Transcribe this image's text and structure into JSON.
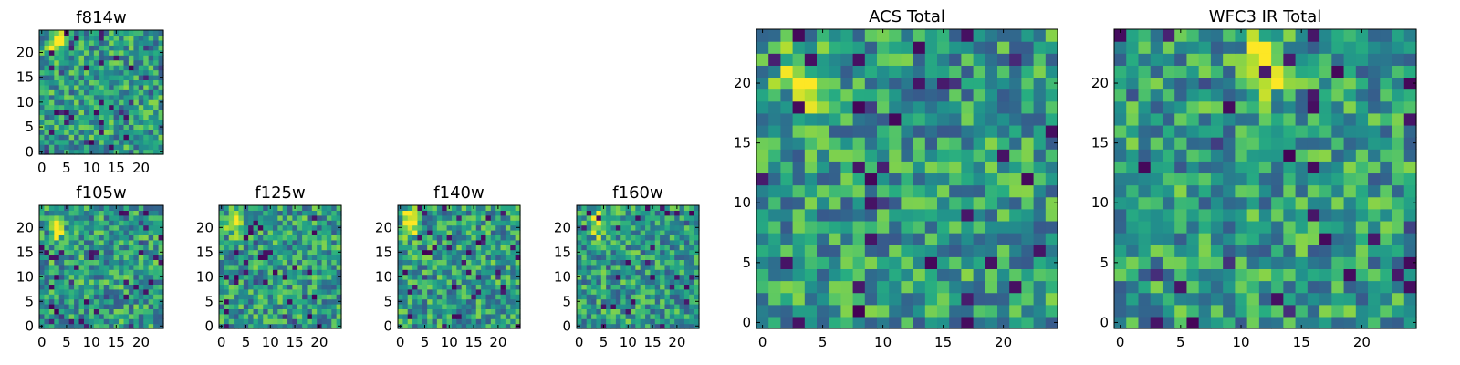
{
  "figure": {
    "colormap": "viridis",
    "background": "#ffffff"
  },
  "chart_data": [
    {
      "type": "heatmap",
      "title": "f814w",
      "xticks": [
        "0",
        "5",
        "10",
        "15",
        "20"
      ],
      "yticks": [
        "0",
        "5",
        "10",
        "15",
        "20"
      ],
      "grid_size": 25,
      "hotspot": {
        "x": 3,
        "y": 22
      },
      "noise_seed": 11
    },
    {
      "type": "heatmap",
      "title": "f105w",
      "xticks": [
        "0",
        "5",
        "10",
        "15",
        "20"
      ],
      "yticks": [
        "0",
        "5",
        "10",
        "15",
        "20"
      ],
      "grid_size": 25,
      "hotspot": {
        "x": 3,
        "y": 20
      },
      "noise_seed": 23
    },
    {
      "type": "heatmap",
      "title": "f125w",
      "xticks": [
        "0",
        "5",
        "10",
        "15",
        "20"
      ],
      "yticks": [
        "0",
        "5",
        "10",
        "15",
        "20"
      ],
      "grid_size": 25,
      "hotspot": {
        "x": 3,
        "y": 21
      },
      "noise_seed": 37
    },
    {
      "type": "heatmap",
      "title": "f140w",
      "xticks": [
        "0",
        "5",
        "10",
        "15",
        "20"
      ],
      "yticks": [
        "0",
        "5",
        "10",
        "15",
        "20"
      ],
      "grid_size": 25,
      "hotspot": {
        "x": 2,
        "y": 21
      },
      "noise_seed": 41
    },
    {
      "type": "heatmap",
      "title": "f160w",
      "xticks": [
        "0",
        "5",
        "10",
        "15",
        "20"
      ],
      "yticks": [
        "0",
        "5",
        "10",
        "15",
        "20"
      ],
      "grid_size": 25,
      "hotspot": {
        "x": 4,
        "y": 21
      },
      "noise_seed": 53
    },
    {
      "type": "heatmap",
      "title": "ACS Total",
      "xticks": [
        "0",
        "5",
        "10",
        "15",
        "20"
      ],
      "yticks": [
        "0",
        "5",
        "10",
        "15",
        "20"
      ],
      "grid_size": 25,
      "hotspot": {
        "x": 3,
        "y": 20
      },
      "noise_seed": 67
    },
    {
      "type": "heatmap",
      "title": "WFC3 IR Total",
      "xticks": [
        "0",
        "5",
        "10",
        "15",
        "20"
      ],
      "yticks": [
        "0",
        "5",
        "10",
        "15",
        "20"
      ],
      "grid_size": 25,
      "hotspot": {
        "x": 12,
        "y": 22
      },
      "noise_seed": 79
    }
  ]
}
